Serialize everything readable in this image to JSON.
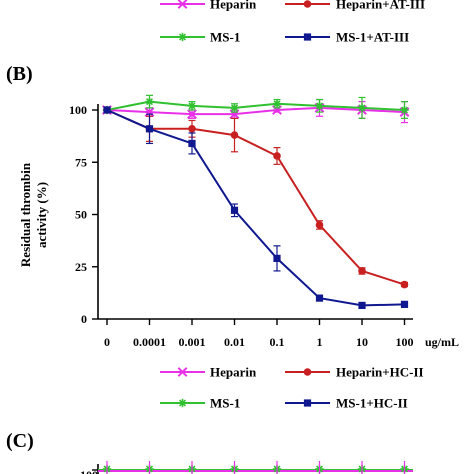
{
  "legend_top": [
    {
      "label": "Heparin",
      "color": "#e830e8",
      "marker": "x"
    },
    {
      "label": "Heparin+AT-III",
      "color": "#c82020",
      "marker": "circle"
    },
    {
      "label": "MS-1",
      "color": "#30c030",
      "marker": "star"
    },
    {
      "label": "MS-1+AT-III",
      "color": "#101890",
      "marker": "square"
    }
  ],
  "panel_b_label": "(B)",
  "panel_c_label": "(C)",
  "panel_c_partial_tick": "100",
  "legend_bottom": [
    {
      "label": "Heparin",
      "color": "#e830e8",
      "marker": "x"
    },
    {
      "label": "Heparin+HC-II",
      "color": "#c82020",
      "marker": "circle"
    },
    {
      "label": "MS-1",
      "color": "#30c030",
      "marker": "star"
    },
    {
      "label": "MS-1+HC-II",
      "color": "#101890",
      "marker": "square"
    }
  ],
  "chart_data": {
    "type": "line",
    "ylabel_lines": [
      "Residual thrombin",
      "activity (%)"
    ],
    "x_unit": "ug/mL",
    "categories": [
      "0",
      "0.0001",
      "0.001",
      "0.01",
      "0.1",
      "1",
      "10",
      "100"
    ],
    "yticks": [
      0,
      25,
      50,
      75,
      100
    ],
    "ylim": [
      0,
      100
    ],
    "series": [
      {
        "name": "Heparin",
        "color": "#e830e8",
        "marker": "x",
        "values": [
          100,
          99,
          98,
          98,
          100,
          101,
          100,
          99
        ],
        "errors": [
          0,
          2,
          2,
          2,
          1,
          4,
          4,
          5
        ]
      },
      {
        "name": "MS-1",
        "color": "#30c030",
        "marker": "star",
        "values": [
          100,
          104,
          102,
          101,
          103,
          102,
          101,
          100
        ],
        "errors": [
          0,
          3,
          2,
          2,
          2,
          3,
          5,
          4
        ]
      },
      {
        "name": "Heparin+HC-II",
        "color": "#c82020",
        "marker": "circle",
        "values": [
          100,
          91,
          91,
          88,
          78,
          45,
          23,
          16.5
        ],
        "errors": [
          0,
          6,
          4,
          8,
          4,
          2,
          1.5,
          1
        ]
      },
      {
        "name": "MS-1+HC-II",
        "color": "#101890",
        "marker": "square",
        "values": [
          100,
          91,
          84,
          52,
          29,
          10,
          6.5,
          7
        ],
        "errors": [
          0,
          7,
          5,
          3,
          6,
          1,
          1,
          1
        ]
      }
    ]
  }
}
